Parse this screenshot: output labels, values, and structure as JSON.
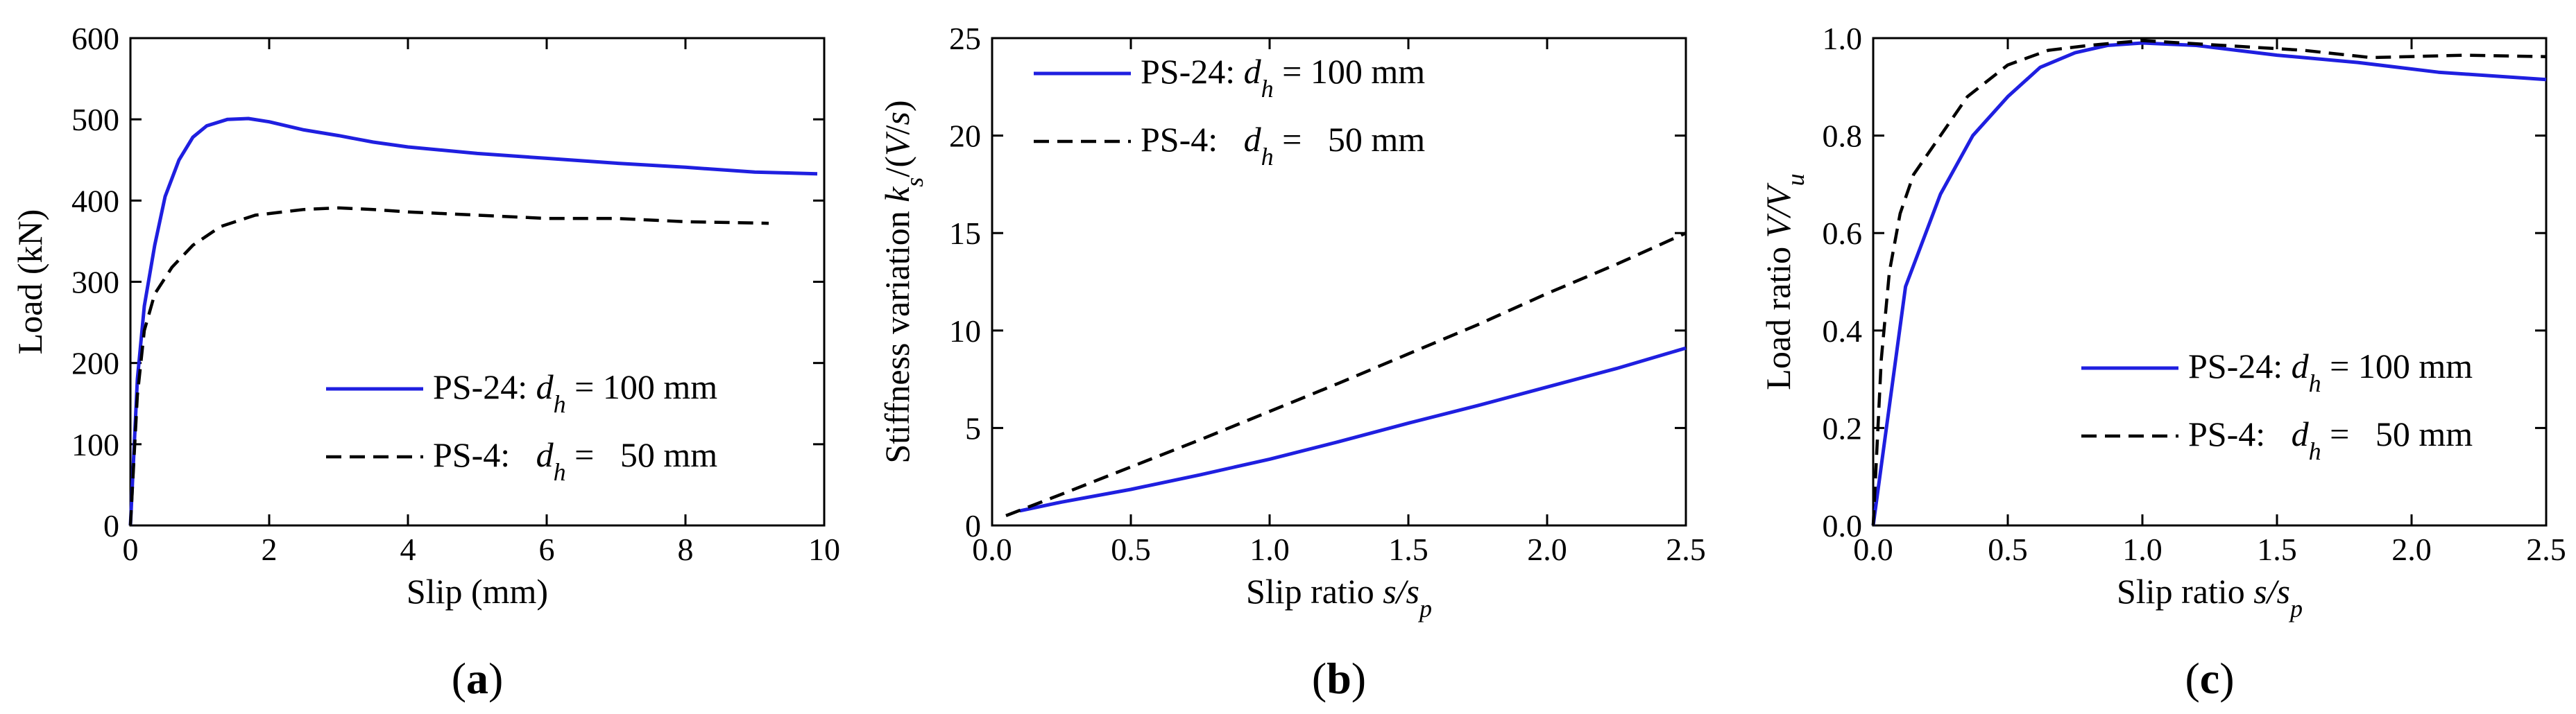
{
  "chart_data": [
    {
      "type": "line",
      "panel_label": "(a)",
      "xlabel": "Slip (mm)",
      "ylabel": "Load (kN)",
      "xlim": [
        0,
        10
      ],
      "ylim": [
        0,
        600
      ],
      "xticks": [
        "0",
        "2",
        "4",
        "6",
        "8",
        "10"
      ],
      "yticks": [
        "0",
        "100",
        "200",
        "300",
        "400",
        "500",
        "600"
      ],
      "legend_position": "center-right",
      "series": [
        {
          "name": "PS-24",
          "legend": {
            "prefix": "PS-24: ",
            "var": "d",
            "sub": "h",
            "value": "= 100 mm"
          },
          "color": "#1f1fe0",
          "style": "solid",
          "x": [
            0,
            0.1,
            0.2,
            0.35,
            0.5,
            0.7,
            0.9,
            1.1,
            1.4,
            1.7,
            2.0,
            2.5,
            3.0,
            3.5,
            4.0,
            5.0,
            6.0,
            7.0,
            8.0,
            9.0,
            9.9
          ],
          "y": [
            0,
            180,
            270,
            345,
            405,
            450,
            478,
            492,
            500,
            501,
            497,
            487,
            480,
            472,
            466,
            458,
            452,
            446,
            441,
            435,
            433
          ]
        },
        {
          "name": "PS-4",
          "legend": {
            "prefix": "PS-4:   ",
            "var": "d",
            "sub": "h",
            "value": "=   50 mm"
          },
          "color": "#000000",
          "style": "dashed",
          "x": [
            0,
            0.1,
            0.2,
            0.35,
            0.6,
            0.9,
            1.3,
            1.8,
            2.5,
            3.0,
            3.5,
            4.0,
            5.0,
            6.0,
            7.0,
            8.0,
            9.2
          ],
          "y": [
            0,
            160,
            240,
            285,
            318,
            345,
            368,
            382,
            389,
            391,
            389,
            386,
            382,
            378,
            378,
            374,
            372
          ]
        }
      ]
    },
    {
      "type": "line",
      "panel_label": "(b)",
      "xlabel": {
        "prefix": "Slip ratio ",
        "var": "s/s",
        "sub": "p"
      },
      "ylabel": {
        "prefix": "Stiffness variation ",
        "var": "k",
        "sub": "s",
        "suffix": "/(V/s)"
      },
      "xlim": [
        0,
        2.5
      ],
      "ylim": [
        0,
        25
      ],
      "xticks": [
        "0.0",
        "0.5",
        "1.0",
        "1.5",
        "2.0",
        "2.5"
      ],
      "yticks": [
        "0",
        "5",
        "10",
        "15",
        "20",
        "25"
      ],
      "legend_position": "top-left",
      "series": [
        {
          "name": "PS-24",
          "legend": {
            "prefix": "PS-24: ",
            "var": "d",
            "sub": "h",
            "value": "= 100 mm"
          },
          "color": "#1f1fe0",
          "style": "solid",
          "x": [
            0.1,
            0.25,
            0.5,
            0.75,
            1.0,
            1.25,
            1.5,
            1.75,
            2.0,
            2.25,
            2.5
          ],
          "y": [
            0.75,
            1.2,
            1.85,
            2.6,
            3.4,
            4.3,
            5.25,
            6.15,
            7.1,
            8.05,
            9.1
          ]
        },
        {
          "name": "PS-4",
          "legend": {
            "prefix": "PS-4:   ",
            "var": "d",
            "sub": "h",
            "value": "=   50 mm"
          },
          "color": "#000000",
          "style": "dashed",
          "x": [
            0.05,
            0.25,
            0.5,
            0.75,
            1.0,
            1.25,
            1.5,
            1.75,
            2.0,
            2.25,
            2.5
          ],
          "y": [
            0.5,
            1.6,
            3.0,
            4.4,
            5.85,
            7.3,
            8.8,
            10.3,
            11.9,
            13.4,
            15.0
          ]
        }
      ]
    },
    {
      "type": "line",
      "panel_label": "(c)",
      "xlabel": {
        "prefix": "Slip ratio ",
        "var": "s/s",
        "sub": "p"
      },
      "ylabel": {
        "prefix": "Load ratio ",
        "var": "V/V",
        "sub": "u"
      },
      "xlim": [
        0,
        2.5
      ],
      "ylim": [
        0,
        1.0
      ],
      "xticks": [
        "0.0",
        "0.5",
        "1.0",
        "1.5",
        "2.0",
        "2.5"
      ],
      "yticks": [
        "0.0",
        "0.2",
        "0.4",
        "0.6",
        "0.8",
        "1.0"
      ],
      "legend_position": "center-right",
      "series": [
        {
          "name": "PS-24",
          "legend": {
            "prefix": "PS-24: ",
            "var": "d",
            "sub": "h",
            "value": "= 100 mm"
          },
          "color": "#1f1fe0",
          "style": "solid",
          "x": [
            0,
            0.12,
            0.25,
            0.37,
            0.5,
            0.62,
            0.75,
            0.87,
            1.0,
            1.2,
            1.5,
            1.8,
            2.1,
            2.5
          ],
          "y": [
            0,
            0.49,
            0.68,
            0.8,
            0.88,
            0.94,
            0.97,
            0.985,
            0.99,
            0.985,
            0.965,
            0.95,
            0.93,
            0.915
          ]
        },
        {
          "name": "PS-4",
          "legend": {
            "prefix": "PS-4:   ",
            "var": "d",
            "sub": "h",
            "value": "=   50 mm"
          },
          "color": "#000000",
          "style": "dashed",
          "x": [
            0,
            0.03,
            0.06,
            0.1,
            0.15,
            0.25,
            0.35,
            0.5,
            0.65,
            0.8,
            1.0,
            1.3,
            1.6,
            1.85,
            2.2,
            2.5
          ],
          "y": [
            0,
            0.34,
            0.52,
            0.64,
            0.72,
            0.8,
            0.88,
            0.945,
            0.975,
            0.985,
            0.995,
            0.985,
            0.975,
            0.96,
            0.965,
            0.962
          ]
        }
      ]
    }
  ]
}
